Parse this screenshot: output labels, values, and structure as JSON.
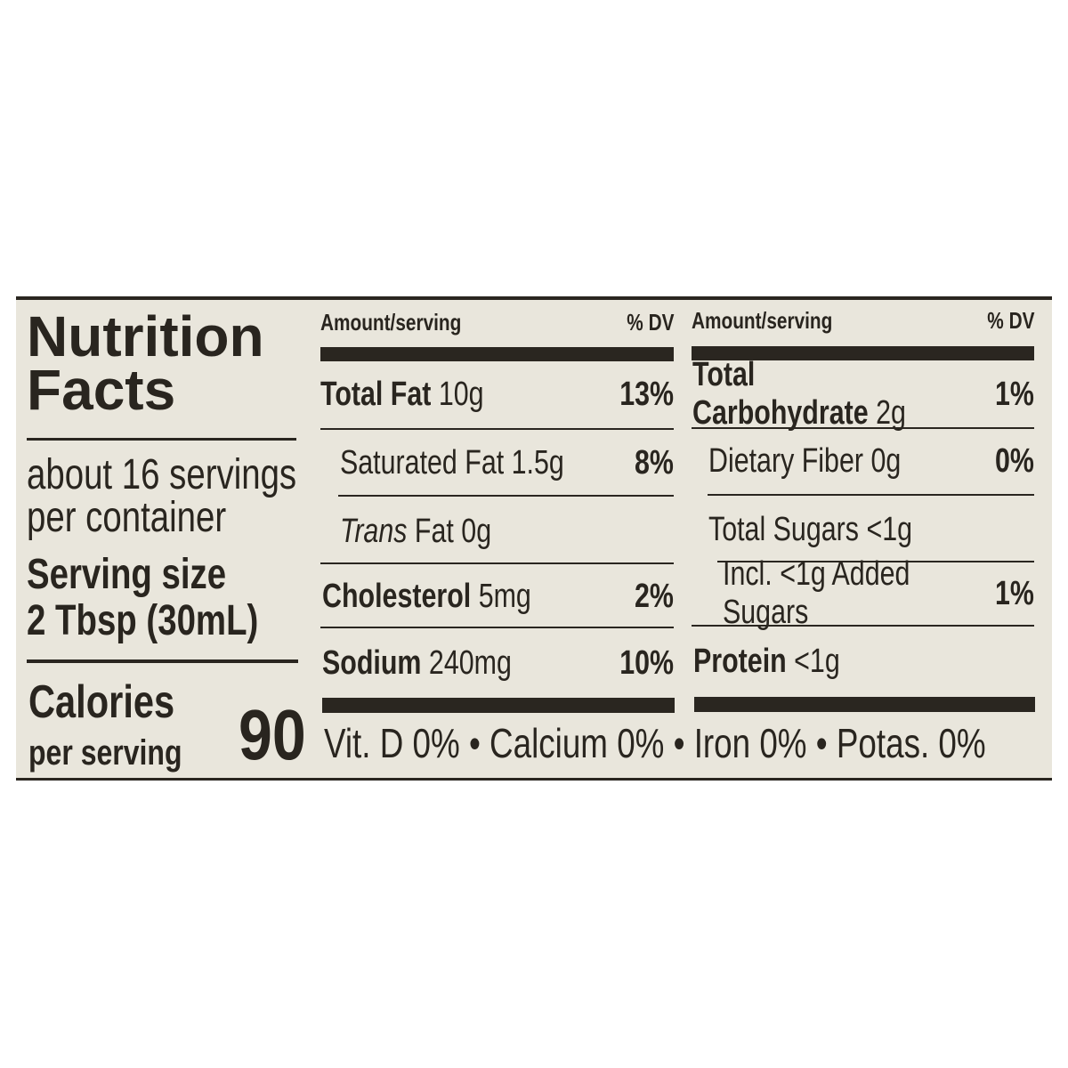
{
  "title_line1": "Nutrition",
  "title_line2": "Facts",
  "servings_line1": "about 16 servings",
  "servings_line2": "per container",
  "serving_size_label": "Serving size",
  "serving_size_value": "2 Tbsp (30mL)",
  "calories_label": "Calories",
  "calories_sub": "per serving",
  "calories_value": "90",
  "left_table": {
    "header_amount": "Amount/serving",
    "header_dv": "% DV",
    "rows": [
      {
        "name": "Total Fat",
        "amount": "10g",
        "dv": "13%"
      },
      {
        "name": "Saturated Fat",
        "amount": "1.5g",
        "dv": "8%"
      },
      {
        "name": "Trans",
        "name_rest": "Fat",
        "amount": "0g",
        "dv": ""
      },
      {
        "name": "Cholesterol",
        "amount": "5mg",
        "dv": "2%"
      },
      {
        "name": "Sodium",
        "amount": "240mg",
        "dv": "10%"
      }
    ]
  },
  "right_table": {
    "header_amount": "Amount/serving",
    "header_dv": "% DV",
    "rows": [
      {
        "name": "Total Carbohydrate",
        "amount": "2g",
        "dv": "1%"
      },
      {
        "name": "Dietary Fiber",
        "amount": "0g",
        "dv": "0%"
      },
      {
        "name": "Total Sugars",
        "amount": "<1g",
        "dv": ""
      },
      {
        "name": "Incl. <1g Added Sugars",
        "amount": "",
        "dv": "1%"
      },
      {
        "name": "Protein",
        "amount": "<1g",
        "dv": ""
      }
    ]
  },
  "footer": "Vit. D 0% • Calcium 0% • Iron 0% • Potas. 0%"
}
